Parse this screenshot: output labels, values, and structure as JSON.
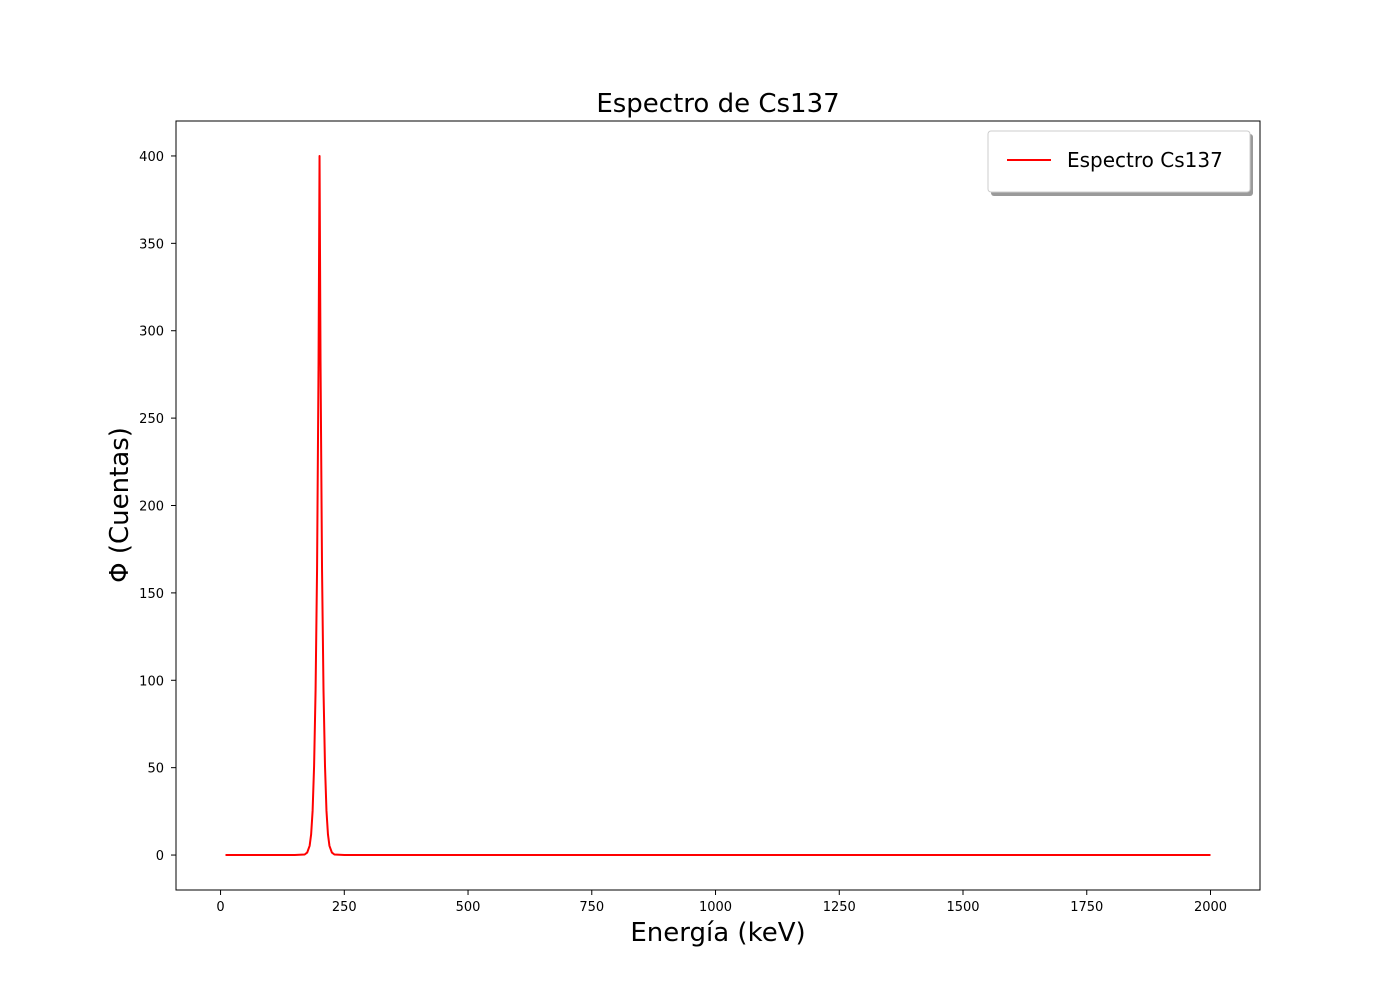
{
  "chart_data": {
    "type": "line",
    "title": "Espectro de Cs137",
    "xlabel": "Energía (keV)",
    "ylabel": "Φ (Cuentas)",
    "xlim": [
      -90,
      2100
    ],
    "ylim": [
      -20,
      420
    ],
    "xticks": [
      0,
      250,
      500,
      750,
      1000,
      1250,
      1500,
      1750,
      2000
    ],
    "xtick_labels": [
      "0",
      "250",
      "500",
      "750",
      "1000",
      "1250",
      "1500",
      "1750",
      "2000"
    ],
    "yticks": [
      0,
      50,
      100,
      150,
      200,
      250,
      300,
      350,
      400
    ],
    "ytick_labels": [
      "0",
      "50",
      "100",
      "150",
      "200",
      "250",
      "300",
      "350",
      "400"
    ],
    "grid": false,
    "legend_position": "top-right",
    "series": [
      {
        "name": "Espectro Cs137",
        "color": "#ff0000",
        "x": [
          10,
          100,
          150,
          170,
          175,
          180,
          183,
          186,
          189,
          192,
          195,
          198,
          200,
          202,
          205,
          208,
          211,
          214,
          217,
          220,
          225,
          230,
          250,
          500,
          750,
          1000,
          1250,
          1500,
          1750,
          2000
        ],
        "y": [
          0,
          0,
          0,
          0.3,
          1.4,
          5.3,
          11.8,
          25.3,
          51.1,
          94.4,
          164,
          282,
          400,
          282,
          164,
          94.4,
          51.1,
          25.3,
          11.8,
          5.3,
          1.4,
          0.3,
          0,
          0,
          0,
          0,
          0,
          0,
          0,
          0
        ]
      }
    ]
  }
}
